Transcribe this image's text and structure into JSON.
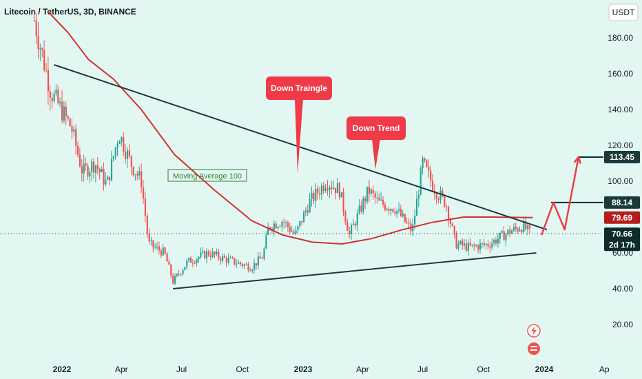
{
  "header": {
    "title": "Litecoin / TetherUS, 3D, BINANCE"
  },
  "currency_button": "USDT",
  "colors": {
    "background": "#e3f7f2",
    "up_candle": "#26a69a",
    "down_candle": "#ef5350",
    "moving_average": "#d32f2f",
    "trend_lines": "#1b3a3a",
    "callout": "#ef3b48",
    "projection_arrow": "#ef3b48"
  },
  "annotations": {
    "down_triangle": "Down Traingle",
    "down_trend": "Down Trend",
    "moving_average_label": "Moving Average 100"
  },
  "price_badges": {
    "target_high": "113.45",
    "target_mid": "88.14",
    "ma_value": "79.69",
    "current_price": "70.66",
    "countdown": "2d 17h"
  },
  "chart_data": {
    "type": "candlestick",
    "title": "Litecoin / TetherUS, 3D, BINANCE",
    "ylabel": "USDT",
    "y_ticks": [
      "180.00",
      "160.00",
      "140.00",
      "120.00",
      "100.00",
      "60.00",
      "40.00",
      "20.00"
    ],
    "x_ticks": [
      "2022",
      "Apr",
      "Jul",
      "Oct",
      "2023",
      "Apr",
      "Jul",
      "Oct",
      "2024",
      "Ap"
    ],
    "x_ticks_bold": [
      true,
      false,
      false,
      false,
      true,
      false,
      false,
      false,
      true,
      false
    ],
    "ylim": [
      0,
      195
    ],
    "price_path": [
      [
        "2021-11-20",
        190
      ],
      [
        "2021-12-15",
        150
      ],
      [
        "2022-01-15",
        130
      ],
      [
        "2022-02-01",
        105
      ],
      [
        "2022-02-20",
        110
      ],
      [
        "2022-03-10",
        98
      ],
      [
        "2022-03-28",
        127
      ],
      [
        "2022-04-15",
        110
      ],
      [
        "2022-05-01",
        100
      ],
      [
        "2022-05-12",
        65
      ],
      [
        "2022-06-05",
        60
      ],
      [
        "2022-06-18",
        44
      ],
      [
        "2022-07-10",
        55
      ],
      [
        "2022-08-10",
        60
      ],
      [
        "2022-09-10",
        56
      ],
      [
        "2022-10-15",
        52
      ],
      [
        "2022-11-01",
        58
      ],
      [
        "2022-11-10",
        75
      ],
      [
        "2022-12-01",
        78
      ],
      [
        "2022-12-20",
        70
      ],
      [
        "2023-01-10",
        88
      ],
      [
        "2023-02-05",
        100
      ],
      [
        "2023-02-25",
        95
      ],
      [
        "2023-03-12",
        70
      ],
      [
        "2023-04-10",
        95
      ],
      [
        "2023-04-25",
        88
      ],
      [
        "2023-05-20",
        85
      ],
      [
        "2023-06-15",
        72
      ],
      [
        "2023-07-01",
        110
      ],
      [
        "2023-07-20",
        95
      ],
      [
        "2023-08-05",
        88
      ],
      [
        "2023-08-20",
        65
      ],
      [
        "2023-09-10",
        63
      ],
      [
        "2023-10-10",
        65
      ],
      [
        "2023-11-10",
        72
      ],
      [
        "2023-11-30",
        75
      ],
      [
        "2023-12-10",
        71
      ]
    ],
    "moving_average_100": [
      [
        "2021-12-10",
        195
      ],
      [
        "2022-01-10",
        183
      ],
      [
        "2022-02-10",
        168
      ],
      [
        "2022-03-20",
        157
      ],
      [
        "2022-05-01",
        140
      ],
      [
        "2022-06-20",
        115
      ],
      [
        "2022-08-20",
        95
      ],
      [
        "2022-10-15",
        78
      ],
      [
        "2022-12-01",
        70
      ],
      [
        "2023-01-15",
        66
      ],
      [
        "2023-03-01",
        65
      ],
      [
        "2023-04-15",
        68
      ],
      [
        "2023-06-01",
        73
      ],
      [
        "2023-07-15",
        77
      ],
      [
        "2023-09-01",
        80
      ],
      [
        "2023-10-15",
        80
      ],
      [
        "2023-12-15",
        79.69
      ]
    ],
    "trend_lines": [
      {
        "name": "descending-resistance",
        "from": [
          "2021-12-20",
          165
        ],
        "to": [
          "2024-01-05",
          73
        ]
      },
      {
        "name": "ascending-support",
        "from": [
          "2022-06-18",
          40
        ],
        "to": [
          "2023-12-20",
          60
        ]
      }
    ],
    "horizontal_levels": [
      {
        "name": "target-high",
        "value": 113.45
      },
      {
        "name": "target-mid",
        "value": 88.14
      },
      {
        "name": "current",
        "value": 70.66
      }
    ],
    "projection": [
      [
        "2023-12-28",
        70
      ],
      [
        "2024-01-15",
        88.14
      ],
      [
        "2024-02-01",
        73
      ],
      [
        "2024-02-22",
        113.45
      ]
    ]
  }
}
